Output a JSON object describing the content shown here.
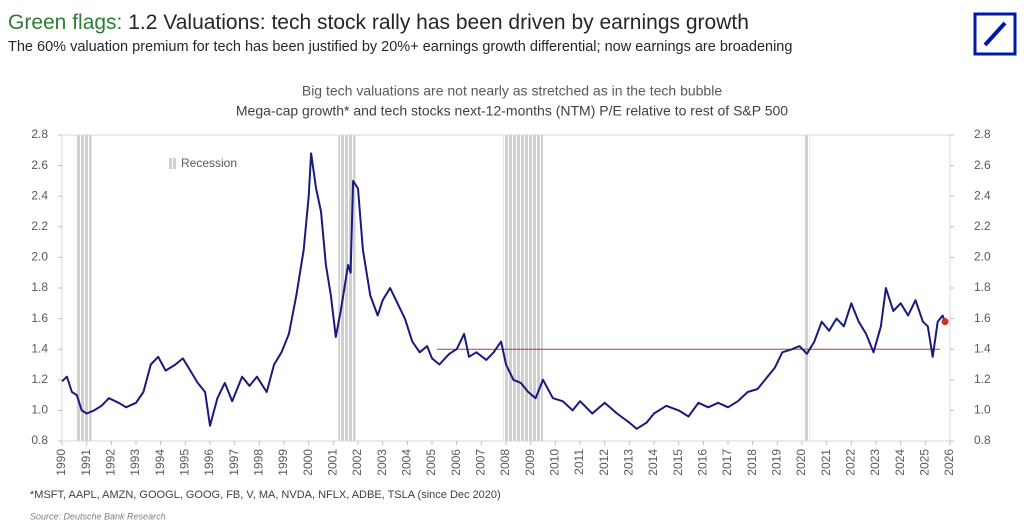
{
  "header": {
    "title_lead": "Green flags:",
    "title_lead_color": "#2e7d32",
    "title": "1.2 Valuations: tech stock rally has been driven by earnings growth",
    "subtitle": "The 60% valuation premium for tech has been justified by 20%+ earnings growth differential; now earnings are broadening"
  },
  "chart_data": {
    "type": "line",
    "title": "Big tech valuations are not nearly as stretched as in the tech bubble",
    "subtitle": "Mega-cap growth* and tech stocks next-12-months (NTM) P/E relative to rest of S&P 500",
    "color": "#1a1a7e",
    "x": [
      1990.0,
      1990.2,
      1990.4,
      1990.6,
      1990.8,
      1991.0,
      1991.3,
      1991.6,
      1991.9,
      1992.3,
      1992.6,
      1993.0,
      1993.3,
      1993.6,
      1993.9,
      1994.2,
      1994.6,
      1994.9,
      1995.2,
      1995.5,
      1995.8,
      1996.0,
      1996.3,
      1996.6,
      1996.9,
      1997.3,
      1997.6,
      1997.9,
      1998.3,
      1998.6,
      1998.9,
      1999.2,
      1999.5,
      1999.8,
      2000.0,
      2000.1,
      2000.3,
      2000.5,
      2000.7,
      2000.9,
      2001.1,
      2001.3,
      2001.6,
      2001.7,
      2001.8,
      2002.0,
      2002.2,
      2002.5,
      2002.8,
      2003.0,
      2003.3,
      2003.6,
      2003.9,
      2004.2,
      2004.5,
      2004.8,
      2005.0,
      2005.3,
      2005.7,
      2006.0,
      2006.3,
      2006.5,
      2006.8,
      2007.2,
      2007.5,
      2007.8,
      2008.0,
      2008.3,
      2008.6,
      2008.9,
      2009.2,
      2009.5,
      2009.9,
      2010.3,
      2010.7,
      2011.0,
      2011.5,
      2012.0,
      2012.5,
      2013.0,
      2013.3,
      2013.7,
      2014.0,
      2014.5,
      2015.0,
      2015.4,
      2015.8,
      2016.2,
      2016.6,
      2017.0,
      2017.4,
      2017.8,
      2018.2,
      2018.6,
      2018.9,
      2019.2,
      2019.6,
      2019.9,
      2020.2,
      2020.5,
      2020.8,
      2021.1,
      2021.4,
      2021.7,
      2022.0,
      2022.3,
      2022.6,
      2022.9,
      2023.2,
      2023.4,
      2023.7,
      2024.0,
      2024.3,
      2024.6,
      2024.9,
      2025.1,
      2025.3,
      2025.5,
      2025.7,
      2025.8
    ],
    "values": [
      1.19,
      1.22,
      1.12,
      1.1,
      1.0,
      0.98,
      1.0,
      1.03,
      1.08,
      1.05,
      1.02,
      1.05,
      1.12,
      1.3,
      1.35,
      1.26,
      1.3,
      1.34,
      1.26,
      1.18,
      1.12,
      0.9,
      1.08,
      1.18,
      1.06,
      1.22,
      1.16,
      1.22,
      1.12,
      1.3,
      1.38,
      1.5,
      1.75,
      2.05,
      2.4,
      2.68,
      2.45,
      2.3,
      1.95,
      1.75,
      1.48,
      1.65,
      1.95,
      1.9,
      2.5,
      2.45,
      2.05,
      1.75,
      1.62,
      1.72,
      1.8,
      1.7,
      1.6,
      1.45,
      1.38,
      1.42,
      1.34,
      1.3,
      1.37,
      1.4,
      1.5,
      1.35,
      1.38,
      1.33,
      1.38,
      1.45,
      1.3,
      1.2,
      1.18,
      1.12,
      1.08,
      1.2,
      1.08,
      1.06,
      1.0,
      1.06,
      0.98,
      1.05,
      0.98,
      0.92,
      0.88,
      0.92,
      0.98,
      1.03,
      1.0,
      0.96,
      1.05,
      1.02,
      1.05,
      1.02,
      1.06,
      1.12,
      1.14,
      1.22,
      1.28,
      1.38,
      1.4,
      1.42,
      1.37,
      1.45,
      1.58,
      1.52,
      1.6,
      1.55,
      1.7,
      1.58,
      1.5,
      1.38,
      1.55,
      1.8,
      1.65,
      1.7,
      1.62,
      1.72,
      1.58,
      1.55,
      1.35,
      1.58,
      1.62,
      1.58
    ],
    "last_point_color": "#c0392b",
    "reference_line": {
      "x": [
        2005.2,
        2025.6
      ],
      "value": 1.4,
      "color": "#c0392b"
    },
    "recession_label": "Recession",
    "recession_periods": [
      [
        1990.6,
        1991.2
      ],
      [
        2001.2,
        2001.9
      ],
      [
        2007.9,
        2009.5
      ],
      [
        2020.1,
        2020.3
      ]
    ],
    "xlim": [
      1990,
      2026
    ],
    "xticks": [
      1990,
      1991,
      1992,
      1993,
      1994,
      1995,
      1996,
      1997,
      1998,
      1999,
      2000,
      2001,
      2002,
      2003,
      2004,
      2005,
      2006,
      2007,
      2008,
      2009,
      2010,
      2011,
      2012,
      2013,
      2014,
      2015,
      2016,
      2017,
      2018,
      2019,
      2020,
      2021,
      2022,
      2023,
      2024,
      2025,
      2026
    ],
    "ylim": [
      0.8,
      2.8
    ],
    "yticks": [
      0.8,
      {
        "value": 1,
        "label": "1.0"
      },
      1.2,
      1.4,
      1.6,
      1.8,
      {
        "value": 2,
        "label": "2.0"
      },
      2.2,
      2.4,
      2.6,
      2.8
    ],
    "y2lim": [
      0.8,
      2.8
    ],
    "y2ticks": [
      0.8,
      {
        "value": 1,
        "label": "1.0"
      },
      1.2,
      1.4,
      1.6,
      1.8,
      {
        "value": 2,
        "label": "2.0"
      },
      2.2,
      2.4,
      2.6,
      2.8
    ],
    "footnote": "*MSFT, AAPL, AMZN, GOOGL, GOOG, FB, V, MA, NVDA, NFLX, ADBE, TSLA (since Dec 2020)",
    "source": "Source: Deutsche Bank Research"
  }
}
